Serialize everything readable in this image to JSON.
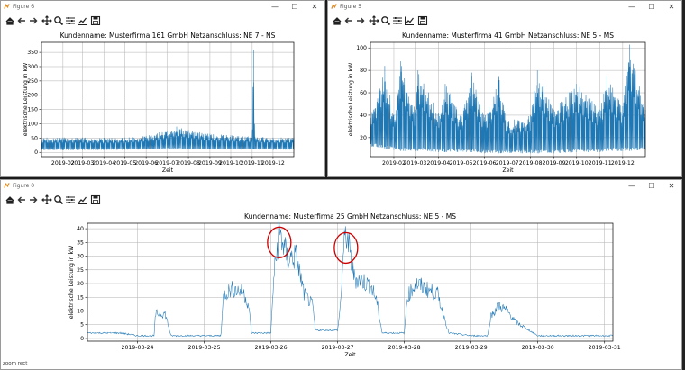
{
  "windows": [
    {
      "id": "w1",
      "title": "Figure 6",
      "chart": {
        "title": "Kundenname: Musterfirma 161 GmbH     Netzanschluss: NE 7 - NS",
        "xlabel": "Zeit",
        "ylabel": "elektrische Leistung in kW",
        "yticks": [
          "0",
          "50",
          "100",
          "150",
          "200",
          "250",
          "300",
          "350"
        ],
        "xticks": [
          "2019-02",
          "2019-03",
          "2019-04",
          "2019-05",
          "2019-06",
          "2019-07",
          "2019-08",
          "2019-09",
          "2019-10",
          "2019-11",
          "2019-12"
        ]
      }
    },
    {
      "id": "w2",
      "title": "Figure 5",
      "chart": {
        "title": "Kundenname: Musterfirma 41 GmbH     Netzanschluss: NE 5 - MS",
        "xlabel": "Zeit",
        "ylabel": "elektrische Leistung in kW",
        "yticks": [
          "20",
          "40",
          "60",
          "80",
          "100"
        ],
        "xticks": [
          "2019-02",
          "2019-03",
          "2019-04",
          "2019-05",
          "2019-06",
          "2019-07",
          "2019-08",
          "2019-09",
          "2019-10",
          "2019-11",
          "2019-12"
        ]
      }
    },
    {
      "id": "w3",
      "title": "Figure 0",
      "status": "zoom rect",
      "chart": {
        "title": "Kundenname: Musterfirma 25 GmbH     Netzanschluss: NE 5 - MS",
        "xlabel": "Zeit",
        "ylabel": "elektrische Leistung in kW",
        "yticks": [
          "0",
          "5",
          "10",
          "15",
          "20",
          "25",
          "30",
          "35",
          "40"
        ],
        "xticks": [
          "2019-03-24",
          "2019-03-25",
          "2019-03-26",
          "2019-03-27",
          "2019-03-28",
          "2019-03-29",
          "2019-03-30",
          "2019-03-31"
        ]
      }
    }
  ],
  "window_controls": {
    "minimize": "—",
    "maximize": "☐",
    "close": "✕"
  },
  "toolbar_icons": [
    "home-icon",
    "back-arrow-icon",
    "forward-arrow-icon",
    "pan-icon",
    "zoom-icon",
    "configure-subplots-icon",
    "edit-axis-icon",
    "save-icon"
  ],
  "colors": {
    "series": "#1f77b4",
    "annotation": "#cc0000"
  },
  "chart_data": [
    {
      "type": "line",
      "title": "Kundenname: Musterfirma 161 GmbH     Netzanschluss: NE 7 - NS",
      "xlabel": "Zeit",
      "ylabel": "elektrische Leistung in kW",
      "xlim": [
        "2019-01-01",
        "2019-12-31"
      ],
      "ylim": [
        -15,
        385
      ],
      "grid": true,
      "series": [
        {
          "x": [
            "2019-01-01",
            "2019-02-01",
            "2019-03-01",
            "2019-04-01",
            "2019-05-01",
            "2019-06-01",
            "2019-06-20",
            "2019-07-01",
            "2019-07-15",
            "2019-08-01",
            "2019-09-01",
            "2019-10-01",
            "2019-11-01",
            "2019-11-03",
            "2019-11-05",
            "2019-12-01",
            "2019-12-31"
          ],
          "y_low": [
            8,
            8,
            8,
            8,
            9,
            10,
            12,
            13,
            12,
            11,
            10,
            10,
            10,
            10,
            10,
            9,
            9
          ],
          "y_high": [
            52,
            52,
            52,
            51,
            52,
            58,
            70,
            75,
            90,
            78,
            65,
            60,
            55,
            360,
            55,
            52,
            52
          ]
        }
      ]
    },
    {
      "type": "line",
      "title": "Kundenname: Musterfirma 41 GmbH     Netzanschluss: NE 5 - MS",
      "xlabel": "Zeit",
      "ylabel": "elektrische Leistung in kW",
      "xlim": [
        "2019-01-01",
        "2019-12-31"
      ],
      "ylim": [
        3,
        105
      ],
      "grid": true,
      "series": [
        {
          "x": [
            "2019-01-05",
            "2019-01-20",
            "2019-02-01",
            "2019-02-10",
            "2019-03-01",
            "2019-03-05",
            "2019-04-01",
            "2019-04-10",
            "2019-05-01",
            "2019-05-15",
            "2019-06-01",
            "2019-06-20",
            "2019-07-01",
            "2019-08-01",
            "2019-08-10",
            "2019-09-01",
            "2019-10-01",
            "2019-11-01",
            "2019-11-10",
            "2019-12-01",
            "2019-12-10",
            "2019-12-31"
          ],
          "y_low": [
            12,
            10,
            9,
            8,
            8,
            8,
            7,
            7,
            7,
            7,
            6,
            6,
            6,
            6,
            6,
            6,
            7,
            7,
            8,
            8,
            8,
            9
          ],
          "y_high": [
            45,
            84,
            40,
            88,
            45,
            80,
            42,
            68,
            40,
            78,
            38,
            75,
            35,
            40,
            80,
            45,
            68,
            45,
            75,
            48,
            103,
            45
          ]
        }
      ]
    },
    {
      "type": "line",
      "title": "Kundenname: Musterfirma 25 GmbH     Netzanschluss: NE 5 - MS",
      "xlabel": "Zeit",
      "ylabel": "elektrische Leistung in kW",
      "xlim": [
        "2019-03-23 06:00",
        "2019-03-31 03:00"
      ],
      "ylim": [
        -1,
        42
      ],
      "grid": true,
      "annotations": [
        {
          "shape": "ellipse",
          "x": "2019-03-26 03:00",
          "y": 35
        },
        {
          "shape": "ellipse",
          "x": "2019-03-27 03:00",
          "y": 33
        }
      ],
      "series": [
        {
          "x": [
            "2019-03-23 06:00",
            "2019-03-23 18:00",
            "2019-03-24 00:00",
            "2019-03-24 06:00",
            "2019-03-24 06:30",
            "2019-03-24 10:00",
            "2019-03-24 12:00",
            "2019-03-25 00:00",
            "2019-03-25 06:00",
            "2019-03-25 07:00",
            "2019-03-25 10:00",
            "2019-03-25 14:00",
            "2019-03-25 16:00",
            "2019-03-25 17:00",
            "2019-03-26 00:00",
            "2019-03-26 01:00",
            "2019-03-26 03:00",
            "2019-03-26 06:00",
            "2019-03-26 09:00",
            "2019-03-26 12:00",
            "2019-03-26 15:00",
            "2019-03-26 16:00",
            "2019-03-27 00:00",
            "2019-03-27 01:00",
            "2019-03-27 02:00",
            "2019-03-27 03:00",
            "2019-03-27 06:00",
            "2019-03-27 09:00",
            "2019-03-27 12:00",
            "2019-03-27 14:00",
            "2019-03-27 16:00",
            "2019-03-28 00:00",
            "2019-03-28 01:00",
            "2019-03-28 04:00",
            "2019-03-28 08:00",
            "2019-03-28 12:00",
            "2019-03-28 16:00",
            "2019-03-29 00:00",
            "2019-03-29 06:00",
            "2019-03-29 07:00",
            "2019-03-29 10:00",
            "2019-03-29 13:00",
            "2019-03-29 16:00",
            "2019-03-30 00:00",
            "2019-03-31 03:00"
          ],
          "y": [
            2,
            2,
            1,
            1,
            9,
            9,
            1,
            1,
            1,
            16,
            18,
            17,
            12,
            2,
            2,
            22,
            39,
            29,
            30,
            16,
            12,
            3,
            3,
            12,
            30,
            39,
            22,
            21,
            19,
            14,
            2,
            2,
            15,
            20,
            18,
            16,
            2,
            1,
            1,
            8,
            12,
            10,
            6,
            1,
            1
          ]
        }
      ]
    }
  ]
}
